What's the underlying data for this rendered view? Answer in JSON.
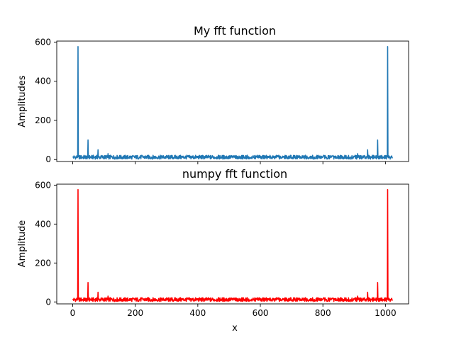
{
  "chart_data": [
    {
      "type": "line",
      "title": "My fft function",
      "xlabel": "",
      "ylabel": "Amplitudes",
      "xlim": [
        -51,
        1074
      ],
      "ylim": [
        -10,
        605
      ],
      "xticks": [
        0,
        200,
        400,
        600,
        800,
        1000
      ],
      "xtick_labels_visible": false,
      "yticks": [
        0,
        200,
        400,
        600
      ],
      "ytick_labels": [
        "0",
        "200",
        "400",
        "600"
      ],
      "grid": false,
      "line_color": "#1f77b4",
      "baseline_level": 11,
      "baseline_noise_range": [
        2,
        22
      ],
      "series": [
        {
          "x": [
            0,
            16,
            17,
            18,
            48,
            49,
            50,
            80,
            81,
            82,
            112,
            113,
            114,
            910,
            911,
            912,
            942,
            943,
            944,
            974,
            975,
            976,
            1006,
            1007,
            1008,
            1023
          ],
          "values": [
            12,
            14,
            577,
            14,
            12,
            100,
            12,
            12,
            50,
            12,
            10,
            30,
            10,
            10,
            30,
            10,
            12,
            50,
            12,
            12,
            100,
            12,
            14,
            577,
            14,
            12
          ]
        }
      ]
    },
    {
      "type": "line",
      "title": "numpy fft function",
      "xlabel": "x",
      "ylabel": "Amplitude",
      "xlim": [
        -51,
        1074
      ],
      "ylim": [
        -10,
        605
      ],
      "xticks": [
        0,
        200,
        400,
        600,
        800,
        1000
      ],
      "xtick_labels": [
        "0",
        "200",
        "400",
        "600",
        "800",
        "1000"
      ],
      "xtick_labels_visible": true,
      "yticks": [
        0,
        200,
        400,
        600
      ],
      "ytick_labels": [
        "0",
        "200",
        "400",
        "600"
      ],
      "grid": false,
      "line_color": "#ff0000",
      "baseline_level": 11,
      "baseline_noise_range": [
        2,
        22
      ],
      "series": [
        {
          "x": [
            0,
            16,
            17,
            18,
            48,
            49,
            50,
            80,
            81,
            82,
            112,
            113,
            114,
            910,
            911,
            912,
            942,
            943,
            944,
            974,
            975,
            976,
            1006,
            1007,
            1008,
            1023
          ],
          "values": [
            12,
            14,
            577,
            14,
            12,
            100,
            12,
            12,
            50,
            12,
            10,
            30,
            10,
            10,
            30,
            10,
            12,
            50,
            12,
            12,
            100,
            12,
            14,
            577,
            14,
            12
          ]
        }
      ]
    }
  ]
}
